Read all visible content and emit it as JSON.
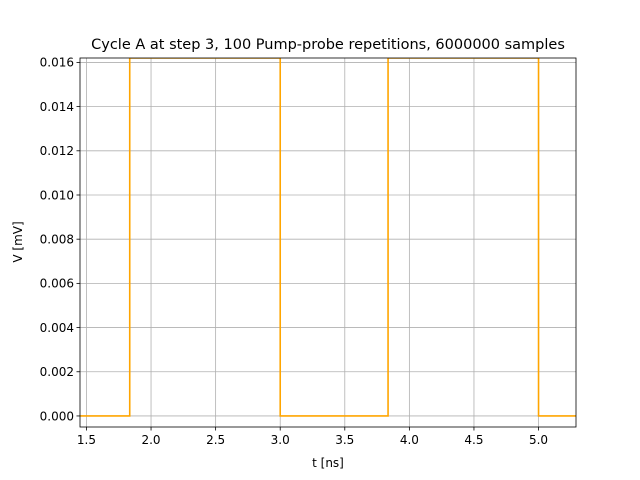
{
  "chart_data": {
    "type": "line",
    "title": "Cycle A at step 3, 100 Pump-probe repetitions, 6000000 samples",
    "xlabel": "t [ns]",
    "ylabel": "V  [mV]",
    "xlim": [
      1.45,
      5.29
    ],
    "ylim": [
      -0.0005,
      0.0162
    ],
    "x_ticks": [
      1.5,
      2.0,
      2.5,
      3.0,
      3.5,
      4.0,
      4.5,
      5.0
    ],
    "x_tick_labels": [
      "1.5",
      "2.0",
      "2.5",
      "3.0",
      "3.5",
      "4.0",
      "4.5",
      "5.0"
    ],
    "y_ticks": [
      0.0,
      0.002,
      0.004,
      0.006,
      0.008,
      0.01,
      0.012,
      0.014,
      0.016
    ],
    "y_tick_labels": [
      "0.000",
      "0.002",
      "0.004",
      "0.006",
      "0.008",
      "0.010",
      "0.012",
      "0.014",
      "0.016"
    ],
    "grid": true,
    "series": [
      {
        "color": "#ffa500",
        "x": [
          1.45,
          1.835,
          1.835,
          3.0,
          3.0,
          3.835,
          3.835,
          5.0,
          5.0,
          5.29
        ],
        "y": [
          0.0,
          0.0,
          0.0162,
          0.0162,
          0.0,
          0.0,
          0.0162,
          0.0162,
          0.0,
          0.0
        ]
      }
    ]
  }
}
